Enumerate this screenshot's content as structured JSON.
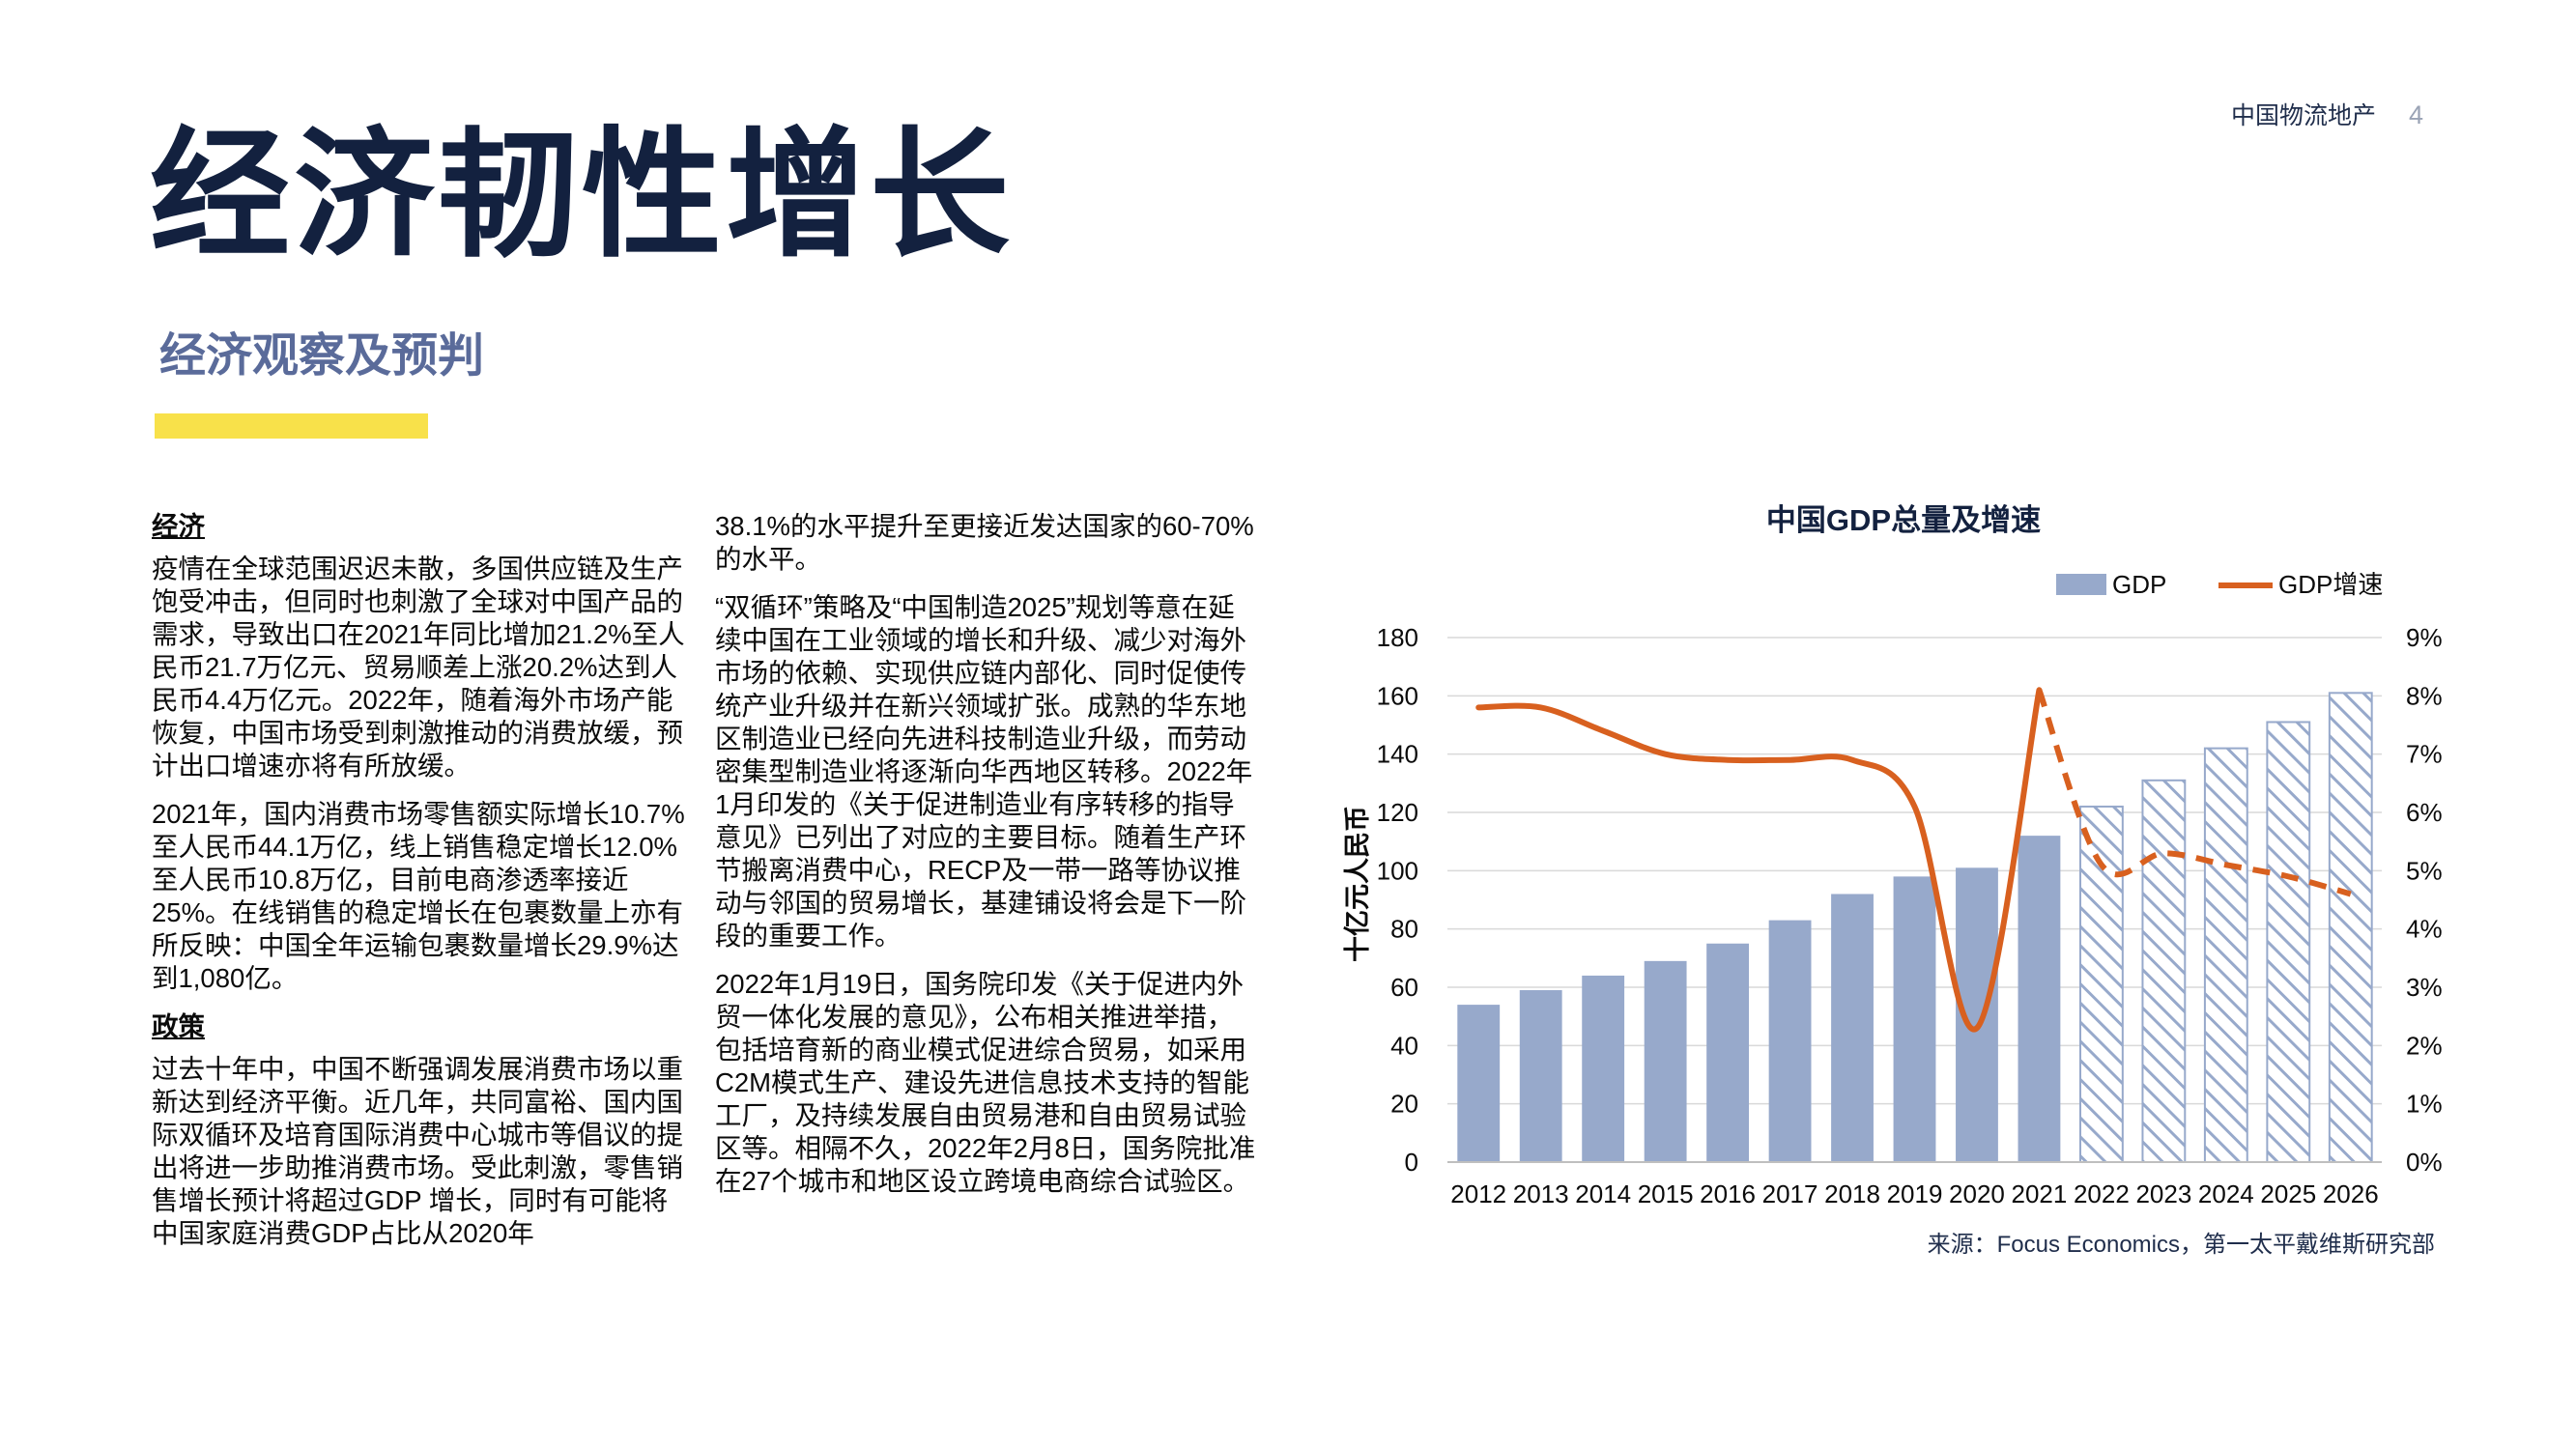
{
  "header": {
    "brand": "中国物流地产",
    "page_number": "4"
  },
  "title": "经济韧性增长",
  "subtitle": "经济观察及预判",
  "accent_color": "#f8e14a",
  "left_column": {
    "heading_economy": "经济",
    "p1": "疫情在全球范围迟迟未散，多国供应链及生产饱受冲击，但同时也刺激了全球对中国产品的需求，导致出口在2021年同比增加21.2%至人民币21.7万亿元、贸易顺差上涨20.2%达到人民币4.4万亿元。2022年，随着海外市场产能恢复，中国市场受到刺激推动的消费放缓，预计出口增速亦将有所放缓。",
    "p2": "2021年，国内消费市场零售额实际增长10.7%至人民币44.1万亿，线上销售稳定增长12.0%至人民币10.8万亿，目前电商渗透率接近25%。在线销售的稳定增长在包裹数量上亦有所反映：中国全年运输包裹数量增长29.9%达到1,080亿。",
    "heading_policy": "政策",
    "p3": "过去十年中，中国不断强调发展消费市场以重新达到经济平衡。近几年，共同富裕、国内国际双循环及培育国际消费中心城市等倡议的提出将进一步助推消费市场。受此刺激，零售销售增长预计将超过GDP 增长，同时有可能将中国家庭消费GDP占比从2020年"
  },
  "middle_column": {
    "p1": "38.1%的水平提升至更接近发达国家的60-70%的水平。",
    "p2": "“双循环”策略及“中国制造2025”规划等意在延续中国在工业领域的增长和升级、减少对海外市场的依赖、实现供应链内部化、同时促使传统产业升级并在新兴领域扩张。成熟的华东地区制造业已经向先进科技制造业升级，而劳动密集型制造业将逐渐向华西地区转移。2022年1月印发的《关于促进制造业有序转移的指导意见》已列出了对应的主要目标。随着生产环节搬离消费中心，RECP及一带一路等协议推动与邻国的贸易增长，基建铺设将会是下一阶段的重要工作。",
    "p3": "2022年1月19日，国务院印发《关于促进内外贸一体化发展的意见》，公布相关推进举措，包括培育新的商业模式促进综合贸易，如采用C2M模式生产、建设先进信息技术支持的智能工厂，及持续发展自由贸易港和自由贸易试验区等。相隔不久，2022年2月8日，国务院批准在27个城市和地区设立跨境电商综合试验区。"
  },
  "chart_data": {
    "type": "bar",
    "title": "中国GDP总量及增速",
    "ylabel": "十亿元人民币",
    "ylim": [
      0,
      180
    ],
    "y2lim": [
      0,
      9
    ],
    "yticks": [
      "0",
      "20",
      "40",
      "60",
      "80",
      "100",
      "120",
      "140",
      "160",
      "180"
    ],
    "y2ticks": [
      "0%",
      "1%",
      "2%",
      "3%",
      "4%",
      "5%",
      "6%",
      "7%",
      "8%",
      "9%"
    ],
    "categories": [
      "2012",
      "2013",
      "2014",
      "2015",
      "2016",
      "2017",
      "2018",
      "2019",
      "2020",
      "2021",
      "2022",
      "2023",
      "2024",
      "2025",
      "2026"
    ],
    "legend_position": "top",
    "grid": true,
    "series": [
      {
        "name": "GDP",
        "kind": "bar",
        "axis": "left",
        "color": "#97a9cb",
        "values": [
          54,
          59,
          64,
          69,
          75,
          83,
          92,
          98,
          101,
          112,
          122,
          131,
          142,
          151,
          161
        ],
        "forecast_from_index": 10
      },
      {
        "name": "GDP增速",
        "kind": "line",
        "axis": "right",
        "color": "#d8601f",
        "values": [
          7.8,
          7.8,
          7.4,
          7.0,
          6.9,
          6.9,
          6.9,
          6.1,
          2.3,
          8.1,
          5.1,
          5.3,
          5.1,
          4.9,
          4.6
        ],
        "forecast_from_index": 9
      }
    ]
  },
  "source": "来源：Focus Economics，第一太平戴维斯研究部"
}
